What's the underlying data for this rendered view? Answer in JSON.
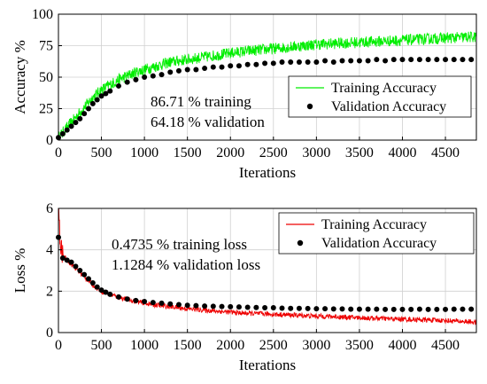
{
  "chart_data": [
    {
      "type": "line",
      "ylabel": "Accuracy %",
      "xlabel": "Iterations",
      "xlim": [
        0,
        4860
      ],
      "ylim": [
        0,
        100
      ],
      "xticks": [
        0,
        500,
        1000,
        1500,
        2000,
        2500,
        3000,
        3500,
        4000,
        4500
      ],
      "yticks": [
        0,
        25,
        50,
        75,
        100
      ],
      "grid": true,
      "legend_position": "center-right",
      "annotations": [
        "86.71 % training",
        "64.18 % validation"
      ],
      "series": [
        {
          "name": "Training Accuracy",
          "color": "#00ee00",
          "style": "noisy-line",
          "x": [
            0,
            100,
            200,
            300,
            400,
            500,
            700,
            900,
            1100,
            1300,
            1500,
            1800,
            2100,
            2400,
            2700,
            3000,
            3300,
            3600,
            3900,
            4200,
            4500,
            4860
          ],
          "values": [
            2,
            10,
            18,
            26,
            34,
            40,
            48,
            54,
            58,
            62,
            64,
            67,
            70,
            72,
            74,
            76,
            77,
            78,
            79,
            80,
            81,
            82
          ]
        },
        {
          "name": "Validation Accuracy",
          "color": "#000000",
          "style": "markers",
          "x": [
            0,
            50,
            100,
            150,
            200,
            250,
            300,
            350,
            400,
            450,
            500,
            550,
            600,
            700,
            800,
            900,
            1000,
            1100,
            1200,
            1300,
            1400,
            1500,
            1600,
            1700,
            1800,
            1900,
            2000,
            2100,
            2200,
            2300,
            2400,
            2500,
            2600,
            2700,
            2800,
            2900,
            3000,
            3100,
            3200,
            3300,
            3400,
            3500,
            3600,
            3700,
            3800,
            3900,
            4000,
            4100,
            4200,
            4300,
            4400,
            4500,
            4600,
            4700,
            4800
          ],
          "values": [
            2,
            5,
            8,
            11,
            14,
            17,
            21,
            25,
            29,
            32,
            35,
            37,
            39,
            43,
            46,
            48,
            50,
            51,
            52,
            54,
            55,
            56,
            56,
            57,
            58,
            58,
            59,
            59,
            60,
            60,
            61,
            61,
            62,
            62,
            62,
            62,
            62,
            63,
            62,
            63,
            63,
            63,
            63,
            64,
            63,
            64,
            64,
            64,
            64,
            64,
            64,
            64,
            64,
            64,
            64
          ]
        }
      ]
    },
    {
      "type": "line",
      "ylabel": "Loss %",
      "xlabel": "Iterations",
      "xlim": [
        0,
        4860
      ],
      "ylim": [
        0,
        6
      ],
      "xticks": [
        0,
        500,
        1000,
        1500,
        2000,
        2500,
        3000,
        3500,
        4000,
        4500
      ],
      "yticks": [
        0,
        2,
        4,
        6
      ],
      "grid": true,
      "legend_position": "top-right",
      "annotations": [
        "0.4735 % training loss",
        "1.1284 % validation loss"
      ],
      "series": [
        {
          "name": "Training Accuracy",
          "color": "#ee0000",
          "style": "noisy-line",
          "x": [
            0,
            20,
            50,
            100,
            200,
            300,
            400,
            500,
            700,
            900,
            1100,
            1300,
            1500,
            1800,
            2100,
            2400,
            2700,
            3000,
            3300,
            3600,
            3900,
            4200,
            4500,
            4860
          ],
          "values": [
            6,
            4.2,
            3.7,
            3.5,
            3.1,
            2.7,
            2.3,
            2.0,
            1.7,
            1.5,
            1.35,
            1.25,
            1.15,
            1.05,
            0.95,
            0.9,
            0.85,
            0.8,
            0.75,
            0.7,
            0.66,
            0.62,
            0.58,
            0.5
          ]
        },
        {
          "name": "Validation Accuracy",
          "color": "#000000",
          "style": "markers",
          "x": [
            0,
            50,
            100,
            150,
            200,
            250,
            300,
            350,
            400,
            450,
            500,
            550,
            600,
            700,
            800,
            900,
            1000,
            1100,
            1200,
            1300,
            1400,
            1500,
            1600,
            1700,
            1800,
            1900,
            2000,
            2100,
            2200,
            2300,
            2400,
            2500,
            2600,
            2700,
            2800,
            2900,
            3000,
            3100,
            3200,
            3300,
            3400,
            3500,
            3600,
            3700,
            3800,
            3900,
            4000,
            4100,
            4200,
            4300,
            4400,
            4500,
            4600,
            4700,
            4800
          ],
          "values": [
            4.6,
            3.6,
            3.5,
            3.4,
            3.2,
            3.0,
            2.8,
            2.6,
            2.4,
            2.2,
            2.05,
            1.95,
            1.85,
            1.72,
            1.62,
            1.55,
            1.5,
            1.45,
            1.42,
            1.38,
            1.35,
            1.32,
            1.3,
            1.28,
            1.27,
            1.26,
            1.25,
            1.24,
            1.22,
            1.21,
            1.2,
            1.2,
            1.18,
            1.17,
            1.17,
            1.16,
            1.15,
            1.15,
            1.14,
            1.14,
            1.13,
            1.13,
            1.13,
            1.13,
            1.12,
            1.12,
            1.12,
            1.12,
            1.13,
            1.12,
            1.12,
            1.12,
            1.13,
            1.13,
            1.13
          ]
        }
      ]
    }
  ]
}
